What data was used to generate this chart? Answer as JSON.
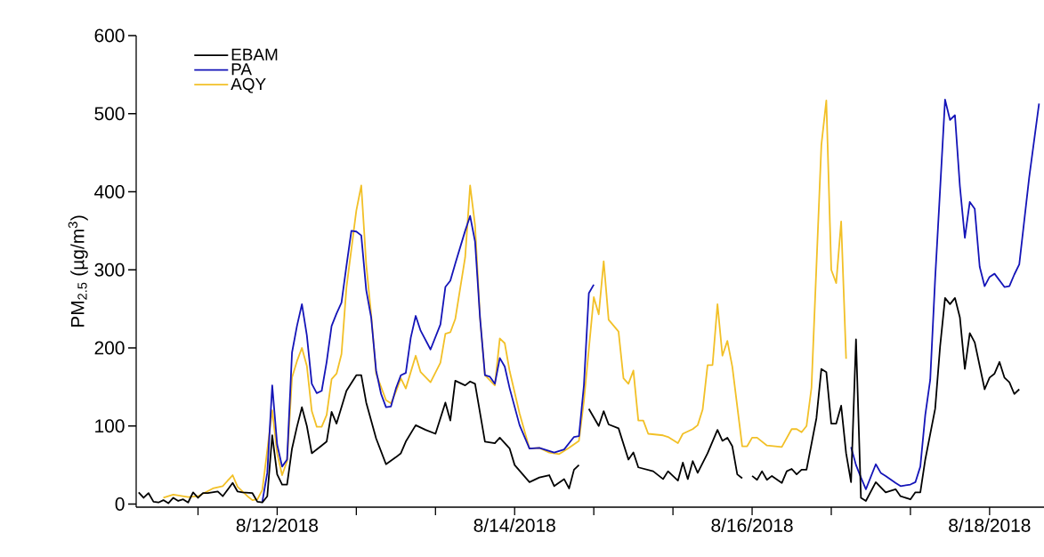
{
  "chart_data": {
    "type": "line",
    "ylabel": "PM$_{2.5}$ (µg/m$^{3}$)",
    "legend": "top left",
    "xlim": [
      "2018-08-10T19:30",
      "2018-08-18T11:00"
    ],
    "xticks": [
      {
        "value": "2018-08-11T08:00",
        "label": null
      },
      {
        "value": "2018-08-12T00:00",
        "label": "8/12/2018"
      },
      {
        "value": "2018-08-12T16:00",
        "label": null
      },
      {
        "value": "2018-08-13T08:00",
        "label": null
      },
      {
        "value": "2018-08-14T00:00",
        "label": "8/14/2018"
      },
      {
        "value": "2018-08-14T16:00",
        "label": null
      },
      {
        "value": "2018-08-15T08:00",
        "label": null
      },
      {
        "value": "2018-08-16T00:00",
        "label": "8/16/2018"
      },
      {
        "value": "2018-08-16T16:00",
        "label": null
      },
      {
        "value": "2018-08-17T08:00",
        "label": null
      },
      {
        "value": "2018-08-18T00:00",
        "label": "8/18/2018"
      }
    ],
    "ylim": [
      -4,
      600
    ],
    "yticks": [
      0,
      100,
      200,
      300,
      400,
      500,
      600
    ],
    "series": [
      {
        "name": "EBAM",
        "color": "#000000",
        "x": [
          "2018-08-10T20:00",
          "2018-08-10T21:00",
          "2018-08-10T22:00",
          "2018-08-10T23:00",
          "2018-08-11T00:00",
          "2018-08-11T01:00",
          "2018-08-11T02:00",
          "2018-08-11T03:00",
          "2018-08-11T04:00",
          "2018-08-11T05:00",
          "2018-08-11T06:00",
          "2018-08-11T07:00",
          "2018-08-11T08:00",
          "2018-08-11T09:00",
          "2018-08-11T10:00",
          "2018-08-11T12:00",
          "2018-08-11T13:00",
          "2018-08-11T15:00",
          "2018-08-11T16:00",
          "2018-08-11T17:00",
          "2018-08-11T19:00",
          "2018-08-11T20:00",
          "2018-08-11T21:00",
          "2018-08-11T22:00",
          "2018-08-11T23:00",
          "2018-08-12T00:00",
          "2018-08-12T01:00",
          "2018-08-12T02:00",
          "2018-08-12T03:00",
          "2018-08-12T04:00",
          "2018-08-12T05:00",
          "2018-08-12T06:00",
          "2018-08-12T07:00",
          "2018-08-12T09:00",
          "2018-08-12T10:00",
          "2018-08-12T11:00",
          "2018-08-12T12:00",
          "2018-08-12T14:00",
          "2018-08-12T16:00",
          "2018-08-12T17:00",
          "2018-08-12T18:00",
          "2018-08-12T20:00",
          "2018-08-12T22:00",
          "2018-08-13T00:00",
          "2018-08-13T01:00",
          "2018-08-13T02:00",
          "2018-08-13T04:00",
          "2018-08-13T06:00",
          "2018-08-13T08:00",
          "2018-08-13T10:00",
          "2018-08-13T11:00",
          "2018-08-13T12:00",
          "2018-08-13T14:00",
          "2018-08-13T15:00",
          "2018-08-13T16:00",
          "2018-08-13T18:00",
          "2018-08-13T20:00",
          "2018-08-13T21:00",
          "2018-08-13T23:00",
          "2018-08-14T00:00",
          "2018-08-14T03:00",
          "2018-08-14T05:00",
          "2018-08-14T07:00",
          "2018-08-14T08:00",
          "2018-08-14T10:00",
          "2018-08-14T11:00",
          "2018-08-14T12:00",
          "2018-08-14T13:00",
          "2018-08-14T14:00",
          "2018-08-14T15:00",
          "2018-08-14T17:00",
          "2018-08-14T18:00",
          "2018-08-14T19:00",
          "2018-08-14T21:00",
          "2018-08-14T23:00",
          "2018-08-15T00:00",
          "2018-08-15T01:00",
          "2018-08-15T04:00",
          "2018-08-15T06:00",
          "2018-08-15T07:00",
          "2018-08-15T09:00",
          "2018-08-15T10:00",
          "2018-08-15T11:00",
          "2018-08-15T12:00",
          "2018-08-15T13:00",
          "2018-08-15T15:00",
          "2018-08-15T17:00",
          "2018-08-15T18:00",
          "2018-08-15T19:00",
          "2018-08-15T20:00",
          "2018-08-15T21:00",
          "2018-08-15T22:00",
          "2018-08-15T23:00",
          "2018-08-16T00:00",
          "2018-08-16T01:00",
          "2018-08-16T02:00",
          "2018-08-16T03:00",
          "2018-08-16T04:00",
          "2018-08-16T06:00",
          "2018-08-16T07:00",
          "2018-08-16T08:00",
          "2018-08-16T09:00",
          "2018-08-16T10:00",
          "2018-08-16T11:00",
          "2018-08-16T13:00",
          "2018-08-16T14:00",
          "2018-08-16T15:00",
          "2018-08-16T16:00",
          "2018-08-16T17:00",
          "2018-08-16T18:00",
          "2018-08-16T19:00",
          "2018-08-16T20:00",
          "2018-08-16T21:00",
          "2018-08-16T22:00",
          "2018-08-16T23:00",
          "2018-08-17T01:00",
          "2018-08-17T03:00",
          "2018-08-17T05:00",
          "2018-08-17T06:00",
          "2018-08-17T08:00",
          "2018-08-17T09:00",
          "2018-08-17T10:00",
          "2018-08-17T11:00",
          "2018-08-17T13:00",
          "2018-08-17T14:00",
          "2018-08-17T15:00",
          "2018-08-17T16:00",
          "2018-08-17T17:00",
          "2018-08-17T18:00",
          "2018-08-17T19:00",
          "2018-08-17T20:00",
          "2018-08-17T21:00",
          "2018-08-17T23:00",
          "2018-08-18T00:00",
          "2018-08-18T01:00",
          "2018-08-18T02:00",
          "2018-08-18T03:00",
          "2018-08-18T04:00",
          "2018-08-18T05:00",
          "2018-08-18T06:00"
        ],
        "values": [
          15,
          8,
          14,
          3,
          2,
          5,
          1,
          8,
          4,
          6,
          2,
          15,
          8,
          14,
          14,
          16,
          10,
          27,
          16,
          15,
          14,
          3,
          2,
          10,
          88,
          38,
          25,
          25,
          71,
          99,
          124,
          100,
          65,
          75,
          80,
          118,
          103,
          145,
          165,
          165,
          130,
          84,
          51,
          60,
          65,
          80,
          101,
          95,
          90,
          130,
          107,
          158,
          152,
          157,
          154,
          80,
          78,
          85,
          71,
          50,
          28,
          34,
          37,
          23,
          32,
          20,
          44,
          50,
          null,
          122,
          100,
          119,
          102,
          97,
          57,
          66,
          47,
          42,
          32,
          42,
          30,
          53,
          32,
          55,
          40,
          65,
          95,
          81,
          85,
          74,
          38,
          33,
          null,
          36,
          31,
          42,
          31,
          36,
          27,
          42,
          45,
          38,
          44,
          44,
          110,
          173,
          169,
          103,
          103,
          126,
          65,
          28,
          211,
          8,
          4,
          28,
          15,
          19,
          10,
          6,
          15,
          15,
          57,
          122,
          202,
          264,
          256,
          264,
          239,
          173,
          219,
          207,
          147,
          162,
          167,
          182,
          162,
          156,
          141,
          147
        ]
      },
      {
        "name": "PA",
        "color": "#1414b8",
        "x": [
          "2018-08-11T21:00",
          "2018-08-11T22:00",
          "2018-08-11T23:00",
          "2018-08-12T00:00",
          "2018-08-12T01:00",
          "2018-08-12T02:00",
          "2018-08-12T03:00",
          "2018-08-12T04:00",
          "2018-08-12T05:00",
          "2018-08-12T06:00",
          "2018-08-12T07:00",
          "2018-08-12T08:00",
          "2018-08-12T09:00",
          "2018-08-12T10:00",
          "2018-08-12T11:00",
          "2018-08-12T12:00",
          "2018-08-12T13:00",
          "2018-08-12T14:00",
          "2018-08-12T15:00",
          "2018-08-12T16:00",
          "2018-08-12T17:00",
          "2018-08-12T18:00",
          "2018-08-12T19:00",
          "2018-08-12T20:00",
          "2018-08-12T21:00",
          "2018-08-12T22:00",
          "2018-08-12T23:00",
          "2018-08-13T00:00",
          "2018-08-13T01:00",
          "2018-08-13T02:00",
          "2018-08-13T03:00",
          "2018-08-13T04:00",
          "2018-08-13T05:00",
          "2018-08-13T07:00",
          "2018-08-13T09:00",
          "2018-08-13T10:00",
          "2018-08-13T11:00",
          "2018-08-13T12:00",
          "2018-08-13T14:00",
          "2018-08-13T15:00",
          "2018-08-13T16:00",
          "2018-08-13T17:00",
          "2018-08-13T18:00",
          "2018-08-13T19:00",
          "2018-08-13T20:00",
          "2018-08-13T21:00",
          "2018-08-13T22:00",
          "2018-08-13T23:00",
          "2018-08-14T01:00",
          "2018-08-14T03:00",
          "2018-08-14T05:00",
          "2018-08-14T07:00",
          "2018-08-14T08:00",
          "2018-08-14T10:00",
          "2018-08-14T12:00",
          "2018-08-14T13:00",
          "2018-08-14T14:00",
          "2018-08-14T15:00",
          "2018-08-14T16:00",
          "2018-08-15T00:00",
          "2018-08-16T20:00",
          "2018-08-16T21:00",
          "2018-08-16T22:00",
          "2018-08-16T23:00",
          "2018-08-17T01:00",
          "2018-08-17T02:00",
          "2018-08-17T03:00",
          "2018-08-17T05:00",
          "2018-08-17T06:00",
          "2018-08-17T08:00",
          "2018-08-17T09:00",
          "2018-08-17T10:00",
          "2018-08-17T11:00",
          "2018-08-17T12:00",
          "2018-08-17T13:00",
          "2018-08-17T14:00",
          "2018-08-17T15:00",
          "2018-08-17T16:00",
          "2018-08-17T17:00",
          "2018-08-17T18:00",
          "2018-08-17T19:00",
          "2018-08-17T20:00",
          "2018-08-17T21:00",
          "2018-08-17T22:00",
          "2018-08-17T23:00",
          "2018-08-18T00:00",
          "2018-08-18T01:00",
          "2018-08-18T03:00",
          "2018-08-18T04:00",
          "2018-08-18T05:00",
          "2018-08-18T06:00",
          "2018-08-18T08:00",
          "2018-08-18T10:00"
        ],
        "values": [
          3,
          40,
          152,
          76,
          48,
          57,
          194,
          228,
          256,
          216,
          154,
          142,
          145,
          182,
          228,
          244,
          258,
          305,
          350,
          349,
          344,
          274,
          239,
          171,
          141,
          124,
          125,
          148,
          165,
          168,
          213,
          241,
          222,
          198,
          230,
          278,
          286,
          308,
          350,
          369,
          336,
          239,
          165,
          163,
          154,
          187,
          176,
          148,
          101,
          71,
          72,
          68,
          66,
          70,
          86,
          87,
          152,
          270,
          281,
          null,
          73,
          50,
          34,
          19,
          51,
          40,
          36,
          27,
          23,
          25,
          28,
          48,
          114,
          159,
          289,
          403,
          518,
          492,
          498,
          407,
          341,
          387,
          378,
          304,
          279,
          291,
          295,
          278,
          279,
          294,
          307,
          418,
          513
        ]
      },
      {
        "name": "AQY",
        "color": "#f2c027",
        "x": [
          "2018-08-11T01:00",
          "2018-08-11T03:00",
          "2018-08-11T06:00",
          "2018-08-11T08:00",
          "2018-08-11T11:00",
          "2018-08-11T13:00",
          "2018-08-11T15:00",
          "2018-08-11T16:00",
          "2018-08-11T18:00",
          "2018-08-11T19:00",
          "2018-08-11T20:00",
          "2018-08-11T21:00",
          "2018-08-11T23:00",
          "2018-08-12T00:00",
          "2018-08-12T01:00",
          "2018-08-12T02:00",
          "2018-08-12T03:00",
          "2018-08-12T04:00",
          "2018-08-12T05:00",
          "2018-08-12T06:00",
          "2018-08-12T07:00",
          "2018-08-12T08:00",
          "2018-08-12T09:00",
          "2018-08-12T10:00",
          "2018-08-12T11:00",
          "2018-08-12T12:00",
          "2018-08-12T13:00",
          "2018-08-12T14:00",
          "2018-08-12T16:00",
          "2018-08-12T17:00",
          "2018-08-12T18:00",
          "2018-08-12T19:00",
          "2018-08-12T20:00",
          "2018-08-12T22:00",
          "2018-08-12T23:00",
          "2018-08-13T00:00",
          "2018-08-13T01:00",
          "2018-08-13T02:00",
          "2018-08-13T04:00",
          "2018-08-13T05:00",
          "2018-08-13T07:00",
          "2018-08-13T09:00",
          "2018-08-13T10:00",
          "2018-08-13T11:00",
          "2018-08-13T12:00",
          "2018-08-13T14:00",
          "2018-08-13T15:00",
          "2018-08-13T16:00",
          "2018-08-13T17:00",
          "2018-08-13T18:00",
          "2018-08-13T20:00",
          "2018-08-13T21:00",
          "2018-08-13T22:00",
          "2018-08-13T23:00",
          "2018-08-14T01:00",
          "2018-08-14T03:00",
          "2018-08-14T05:00",
          "2018-08-14T07:00",
          "2018-08-14T09:00",
          "2018-08-14T11:00",
          "2018-08-14T13:00",
          "2018-08-14T14:00",
          "2018-08-14T16:00",
          "2018-08-14T17:00",
          "2018-08-14T18:00",
          "2018-08-14T19:00",
          "2018-08-14T21:00",
          "2018-08-14T22:00",
          "2018-08-14T23:00",
          "2018-08-15T00:00",
          "2018-08-15T01:00",
          "2018-08-15T02:00",
          "2018-08-15T03:00",
          "2018-08-15T06:00",
          "2018-08-15T07:00",
          "2018-08-15T09:00",
          "2018-08-15T10:00",
          "2018-08-15T12:00",
          "2018-08-15T13:00",
          "2018-08-15T14:00",
          "2018-08-15T15:00",
          "2018-08-15T16:00",
          "2018-08-15T17:00",
          "2018-08-15T18:00",
          "2018-08-15T19:00",
          "2018-08-15T20:00",
          "2018-08-15T22:00",
          "2018-08-15T23:00",
          "2018-08-16T00:00",
          "2018-08-16T01:00",
          "2018-08-16T03:00",
          "2018-08-16T06:00",
          "2018-08-16T08:00",
          "2018-08-16T09:00",
          "2018-08-16T10:00",
          "2018-08-16T11:00",
          "2018-08-16T12:00",
          "2018-08-16T14:00",
          "2018-08-16T15:00",
          "2018-08-16T16:00",
          "2018-08-16T17:00",
          "2018-08-16T18:00",
          "2018-08-16T19:00"
        ],
        "values": [
          8,
          12,
          9,
          10,
          20,
          23,
          37,
          22,
          10,
          5,
          6,
          18,
          120,
          65,
          37,
          55,
          162,
          183,
          200,
          177,
          119,
          99,
          99,
          114,
          160,
          167,
          192,
          277,
          376,
          408,
          307,
          243,
          167,
          133,
          129,
          144,
          161,
          148,
          190,
          169,
          156,
          181,
          218,
          220,
          237,
          316,
          408,
          357,
          239,
          165,
          152,
          212,
          206,
          170,
          116,
          71,
          72,
          66,
          64,
          72,
          81,
          132,
          265,
          243,
          311,
          236,
          221,
          161,
          154,
          171,
          107,
          107,
          90,
          88,
          86,
          78,
          90,
          96,
          101,
          121,
          178,
          178,
          256,
          190,
          209,
          176,
          74,
          74,
          85,
          85,
          75,
          73,
          96,
          96,
          92,
          100,
          149,
          460,
          517,
          300,
          283,
          362,
          186
        ]
      }
    ]
  }
}
